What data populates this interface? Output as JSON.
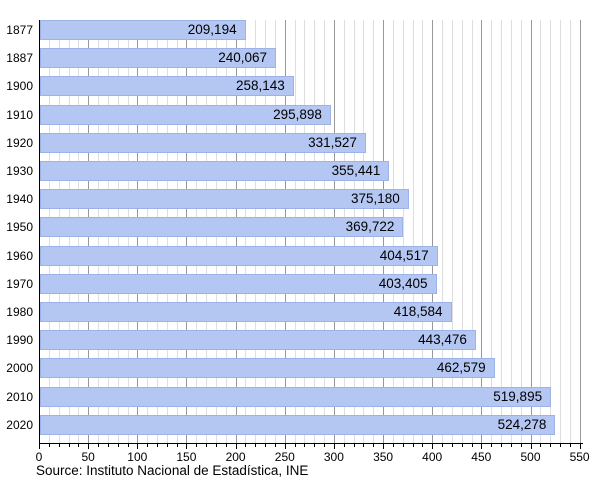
{
  "chart_data": {
    "type": "bar",
    "orientation": "horizontal",
    "title": "",
    "categories": [
      "1877",
      "1887",
      "1900",
      "1910",
      "1920",
      "1930",
      "1940",
      "1950",
      "1960",
      "1970",
      "1980",
      "1990",
      "2000",
      "2010",
      "2020"
    ],
    "values": [
      209194,
      240067,
      258143,
      295898,
      331527,
      355441,
      375180,
      369722,
      404517,
      403405,
      418584,
      443476,
      462579,
      519895,
      524278
    ],
    "value_labels": [
      "209,194",
      "240,067",
      "258,143",
      "295,898",
      "331,527",
      "355,441",
      "375,180",
      "369,722",
      "404,517",
      "403,405",
      "418,584",
      "443,476",
      "462,579",
      "519,895",
      "524,278"
    ],
    "xlabel": "",
    "ylabel": "",
    "xlim": [
      0,
      550
    ],
    "x_axis_scale": "thousands",
    "x_major_step": 50,
    "x_minor_step": 10,
    "x_tick_labels": [
      "0",
      "50",
      "100",
      "150",
      "200",
      "250",
      "300",
      "350",
      "400",
      "450",
      "500",
      "550"
    ],
    "grid": "vertical, minor every 10 and major every 50, drawn behind bars",
    "legend_position": "none",
    "source": "Source: Instituto Nacional de Estadística, INE",
    "colors": {
      "bar_fill": "#b4c6f2",
      "bar_border": "#9db2e6",
      "grid_major": "#999999",
      "grid_minor": "#dedede",
      "axis": "#000000",
      "text": "#000000",
      "background": "#ffffff"
    }
  }
}
